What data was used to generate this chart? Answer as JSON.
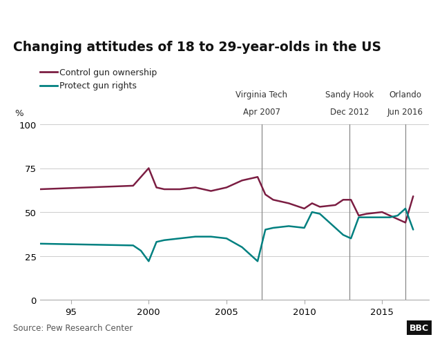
{
  "title": "Changing attitudes of 18 to 29-year-olds in the US",
  "ylabel": "%",
  "source": "Source: Pew Research Center",
  "control_color": "#7b1d42",
  "rights_color": "#008080",
  "background_color": "#ffffff",
  "ylim": [
    0,
    100
  ],
  "xlim": [
    1993,
    2018
  ],
  "yticks": [
    0,
    25,
    50,
    75,
    100
  ],
  "xticks": [
    1995,
    2000,
    2005,
    2010,
    2015
  ],
  "xticklabels": [
    "95",
    "2000",
    "2005",
    "2010",
    "2015"
  ],
  "vertical_lines": [
    2007.25,
    2012.917,
    2016.5
  ],
  "vline_labels": [
    [
      "Virginia Tech",
      "Apr 2007"
    ],
    [
      "Sandy Hook",
      "Dec 2012"
    ],
    [
      "Orlando",
      "Jun 2016"
    ]
  ],
  "legend_labels": [
    "Control gun ownership",
    "Protect gun rights"
  ],
  "control_data": [
    [
      1993,
      63
    ],
    [
      1999,
      65
    ],
    [
      1999.5,
      70
    ],
    [
      2000,
      75
    ],
    [
      2000.5,
      64
    ],
    [
      2001,
      63
    ],
    [
      2002,
      63
    ],
    [
      2003,
      64
    ],
    [
      2004,
      62
    ],
    [
      2005,
      64
    ],
    [
      2006,
      68
    ],
    [
      2007,
      70
    ],
    [
      2007.5,
      60
    ],
    [
      2008,
      57
    ],
    [
      2009,
      55
    ],
    [
      2010,
      52
    ],
    [
      2010.5,
      55
    ],
    [
      2011,
      53
    ],
    [
      2012,
      54
    ],
    [
      2012.5,
      57
    ],
    [
      2013,
      57
    ],
    [
      2013.5,
      48
    ],
    [
      2014,
      49
    ],
    [
      2015,
      50
    ],
    [
      2015.5,
      48
    ],
    [
      2016,
      46
    ],
    [
      2016.5,
      44
    ],
    [
      2017,
      59
    ]
  ],
  "rights_data": [
    [
      1993,
      32
    ],
    [
      1999,
      31
    ],
    [
      1999.5,
      28
    ],
    [
      2000,
      22
    ],
    [
      2000.5,
      33
    ],
    [
      2001,
      34
    ],
    [
      2002,
      35
    ],
    [
      2003,
      36
    ],
    [
      2004,
      36
    ],
    [
      2005,
      35
    ],
    [
      2006,
      30
    ],
    [
      2007,
      22
    ],
    [
      2007.5,
      40
    ],
    [
      2008,
      41
    ],
    [
      2009,
      42
    ],
    [
      2010,
      41
    ],
    [
      2010.5,
      50
    ],
    [
      2011,
      49
    ],
    [
      2012,
      41
    ],
    [
      2012.5,
      37
    ],
    [
      2013,
      35
    ],
    [
      2013.5,
      47
    ],
    [
      2014,
      47
    ],
    [
      2015,
      47
    ],
    [
      2015.5,
      47
    ],
    [
      2016,
      48
    ],
    [
      2016.5,
      52
    ],
    [
      2017,
      40
    ]
  ]
}
